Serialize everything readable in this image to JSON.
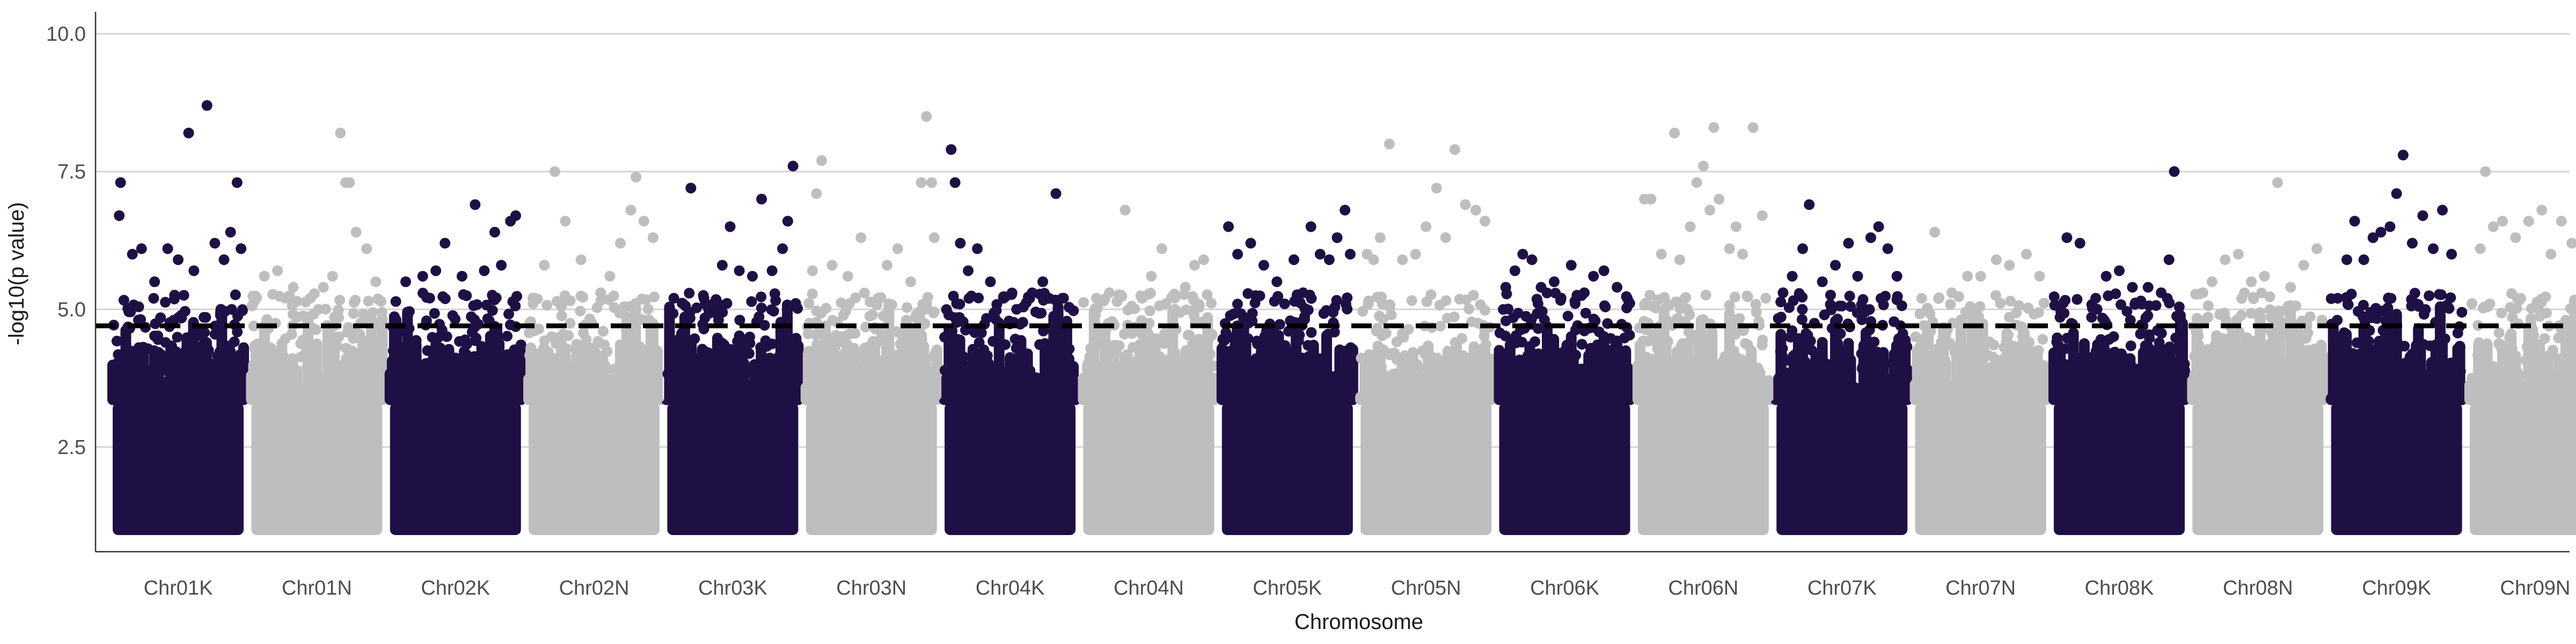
{
  "chart_data": {
    "type": "scatter",
    "title": "",
    "xlabel": "Chromosome",
    "ylabel": "-log10(p value)",
    "ylim": [
      0.6,
      10.4
    ],
    "yticks": [
      2.5,
      5.0,
      7.5,
      10.0
    ],
    "ytick_labels": [
      "2.5",
      "5.0",
      "7.5",
      "10.0"
    ],
    "grid": "horizontal",
    "threshold": 4.7,
    "colors": {
      "dark": "#1e1045",
      "light": "#bebebe",
      "threshold": "#000000"
    },
    "categories": [
      "Chr01K",
      "Chr01N",
      "Chr02K",
      "Chr02N",
      "Chr03K",
      "Chr03N",
      "Chr04K",
      "Chr04N",
      "Chr05K",
      "Chr05N",
      "Chr06K",
      "Chr06N",
      "Chr07K",
      "Chr07N",
      "Chr08K",
      "Chr08N",
      "Chr09K",
      "Chr09N"
    ],
    "series": [
      {
        "category": "Chr01K",
        "color": "dark",
        "max": 8.7,
        "top_points": [
          [
            0.05,
            6.7
          ],
          [
            0.06,
            7.3
          ],
          [
            0.15,
            6.0
          ],
          [
            0.22,
            6.1
          ],
          [
            0.32,
            5.5
          ],
          [
            0.42,
            6.1
          ],
          [
            0.5,
            5.9
          ],
          [
            0.58,
            8.2
          ],
          [
            0.62,
            5.7
          ],
          [
            0.72,
            8.7
          ],
          [
            0.78,
            6.2
          ],
          [
            0.85,
            5.9
          ],
          [
            0.9,
            6.4
          ],
          [
            0.95,
            7.3
          ],
          [
            0.98,
            6.1
          ]
        ]
      },
      {
        "category": "Chr01N",
        "color": "light",
        "max": 8.2,
        "top_points": [
          [
            0.1,
            5.6
          ],
          [
            0.2,
            5.7
          ],
          [
            0.32,
            5.4
          ],
          [
            0.45,
            5.2
          ],
          [
            0.55,
            5.4
          ],
          [
            0.62,
            5.6
          ],
          [
            0.68,
            8.2
          ],
          [
            0.72,
            7.3
          ],
          [
            0.75,
            7.3
          ],
          [
            0.8,
            6.4
          ],
          [
            0.88,
            6.1
          ],
          [
            0.95,
            5.5
          ]
        ]
      },
      {
        "category": "Chr02K",
        "color": "dark",
        "max": 7.0,
        "top_points": [
          [
            0.12,
            5.5
          ],
          [
            0.25,
            5.6
          ],
          [
            0.35,
            5.7
          ],
          [
            0.42,
            6.2
          ],
          [
            0.55,
            5.6
          ],
          [
            0.65,
            6.9
          ],
          [
            0.72,
            5.7
          ],
          [
            0.8,
            6.4
          ],
          [
            0.85,
            5.8
          ],
          [
            0.92,
            6.6
          ],
          [
            0.96,
            6.7
          ]
        ]
      },
      {
        "category": "Chr02N",
        "color": "light",
        "max": 7.5,
        "top_points": [
          [
            0.05,
            5.2
          ],
          [
            0.12,
            5.8
          ],
          [
            0.2,
            7.5
          ],
          [
            0.28,
            6.6
          ],
          [
            0.4,
            5.9
          ],
          [
            0.55,
            5.3
          ],
          [
            0.62,
            5.6
          ],
          [
            0.7,
            6.2
          ],
          [
            0.78,
            6.8
          ],
          [
            0.82,
            7.4
          ],
          [
            0.88,
            6.6
          ],
          [
            0.95,
            6.3
          ]
        ]
      },
      {
        "category": "Chr03K",
        "color": "dark",
        "max": 7.6,
        "top_points": [
          [
            0.05,
            5.2
          ],
          [
            0.12,
            5.1
          ],
          [
            0.18,
            7.2
          ],
          [
            0.28,
            5.2
          ],
          [
            0.35,
            5.1
          ],
          [
            0.42,
            5.8
          ],
          [
            0.48,
            6.5
          ],
          [
            0.55,
            5.7
          ],
          [
            0.65,
            5.6
          ],
          [
            0.72,
            7.0
          ],
          [
            0.8,
            5.7
          ],
          [
            0.88,
            6.1
          ],
          [
            0.92,
            6.6
          ],
          [
            0.96,
            7.6
          ]
        ]
      },
      {
        "category": "Chr03N",
        "color": "light",
        "max": 8.5,
        "top_points": [
          [
            0.05,
            5.7
          ],
          [
            0.08,
            7.1
          ],
          [
            0.12,
            7.7
          ],
          [
            0.2,
            5.8
          ],
          [
            0.32,
            5.6
          ],
          [
            0.42,
            6.3
          ],
          [
            0.55,
            5.2
          ],
          [
            0.62,
            5.8
          ],
          [
            0.7,
            6.1
          ],
          [
            0.8,
            5.5
          ],
          [
            0.88,
            7.3
          ],
          [
            0.92,
            8.5
          ],
          [
            0.96,
            7.3
          ],
          [
            0.98,
            6.3
          ]
        ]
      },
      {
        "category": "Chr04K",
        "color": "dark",
        "max": 7.9,
        "top_points": [
          [
            0.05,
            7.9
          ],
          [
            0.08,
            7.3
          ],
          [
            0.12,
            6.2
          ],
          [
            0.18,
            5.7
          ],
          [
            0.25,
            6.1
          ],
          [
            0.35,
            5.5
          ],
          [
            0.45,
            5.2
          ],
          [
            0.55,
            5.0
          ],
          [
            0.65,
            5.2
          ],
          [
            0.75,
            5.5
          ],
          [
            0.85,
            7.1
          ],
          [
            0.9,
            5.2
          ]
        ]
      },
      {
        "category": "Chr04N",
        "color": "light",
        "max": 6.8,
        "top_points": [
          [
            0.1,
            5.2
          ],
          [
            0.2,
            5.3
          ],
          [
            0.32,
            6.8
          ],
          [
            0.45,
            5.2
          ],
          [
            0.52,
            5.6
          ],
          [
            0.6,
            6.1
          ],
          [
            0.7,
            5.0
          ],
          [
            0.78,
            5.4
          ],
          [
            0.85,
            5.8
          ],
          [
            0.92,
            5.9
          ]
        ]
      },
      {
        "category": "Chr05K",
        "color": "dark",
        "max": 6.8,
        "top_points": [
          [
            0.05,
            6.5
          ],
          [
            0.12,
            6.0
          ],
          [
            0.22,
            6.2
          ],
          [
            0.32,
            5.8
          ],
          [
            0.42,
            5.5
          ],
          [
            0.55,
            5.9
          ],
          [
            0.62,
            5.3
          ],
          [
            0.68,
            6.5
          ],
          [
            0.75,
            6.0
          ],
          [
            0.82,
            5.9
          ],
          [
            0.88,
            6.3
          ],
          [
            0.94,
            6.8
          ],
          [
            0.98,
            6.0
          ]
        ]
      },
      {
        "category": "Chr05N",
        "color": "light",
        "max": 8.0,
        "top_points": [
          [
            0.05,
            6.0
          ],
          [
            0.1,
            5.9
          ],
          [
            0.15,
            6.3
          ],
          [
            0.22,
            8.0
          ],
          [
            0.32,
            5.9
          ],
          [
            0.42,
            6.0
          ],
          [
            0.5,
            6.5
          ],
          [
            0.58,
            7.2
          ],
          [
            0.65,
            6.3
          ],
          [
            0.72,
            7.9
          ],
          [
            0.8,
            6.9
          ],
          [
            0.88,
            6.8
          ],
          [
            0.95,
            6.6
          ]
        ]
      },
      {
        "category": "Chr06K",
        "color": "dark",
        "max": 6.0,
        "top_points": [
          [
            0.05,
            5.4
          ],
          [
            0.12,
            5.7
          ],
          [
            0.18,
            6.0
          ],
          [
            0.25,
            5.9
          ],
          [
            0.32,
            5.4
          ],
          [
            0.42,
            5.5
          ],
          [
            0.55,
            5.8
          ],
          [
            0.65,
            5.3
          ],
          [
            0.72,
            5.6
          ],
          [
            0.8,
            5.7
          ],
          [
            0.9,
            5.4
          ]
        ]
      },
      {
        "category": "Chr06N",
        "color": "light",
        "max": 8.3,
        "top_points": [
          [
            0.05,
            7.0
          ],
          [
            0.1,
            7.0
          ],
          [
            0.18,
            6.0
          ],
          [
            0.28,
            8.2
          ],
          [
            0.32,
            5.9
          ],
          [
            0.4,
            6.5
          ],
          [
            0.45,
            7.3
          ],
          [
            0.5,
            7.6
          ],
          [
            0.55,
            6.8
          ],
          [
            0.58,
            8.3
          ],
          [
            0.62,
            7.0
          ],
          [
            0.7,
            6.1
          ],
          [
            0.75,
            6.5
          ],
          [
            0.8,
            6.0
          ],
          [
            0.88,
            8.3
          ],
          [
            0.95,
            6.7
          ]
        ]
      },
      {
        "category": "Chr07K",
        "color": "dark",
        "max": 6.9,
        "top_points": [
          [
            0.05,
            5.3
          ],
          [
            0.12,
            5.6
          ],
          [
            0.2,
            6.1
          ],
          [
            0.25,
            6.9
          ],
          [
            0.35,
            5.5
          ],
          [
            0.45,
            5.8
          ],
          [
            0.55,
            6.2
          ],
          [
            0.62,
            5.6
          ],
          [
            0.72,
            6.3
          ],
          [
            0.78,
            6.5
          ],
          [
            0.85,
            6.1
          ],
          [
            0.92,
            5.6
          ]
        ]
      },
      {
        "category": "Chr07N",
        "color": "light",
        "max": 6.4,
        "top_points": [
          [
            0.05,
            5.2
          ],
          [
            0.15,
            6.4
          ],
          [
            0.28,
            5.3
          ],
          [
            0.4,
            5.6
          ],
          [
            0.5,
            5.6
          ],
          [
            0.62,
            5.9
          ],
          [
            0.72,
            5.8
          ],
          [
            0.85,
            6.0
          ],
          [
            0.95,
            5.6
          ]
        ]
      },
      {
        "category": "Chr08K",
        "color": "dark",
        "max": 7.5,
        "top_points": [
          [
            0.1,
            6.3
          ],
          [
            0.2,
            6.2
          ],
          [
            0.32,
            5.2
          ],
          [
            0.4,
            5.6
          ],
          [
            0.5,
            5.7
          ],
          [
            0.6,
            5.4
          ],
          [
            0.72,
            5.4
          ],
          [
            0.82,
            5.3
          ],
          [
            0.88,
            5.9
          ],
          [
            0.92,
            7.5
          ]
        ]
      },
      {
        "category": "Chr08N",
        "color": "light",
        "max": 7.3,
        "top_points": [
          [
            0.08,
            5.3
          ],
          [
            0.15,
            5.5
          ],
          [
            0.25,
            5.9
          ],
          [
            0.35,
            6.0
          ],
          [
            0.45,
            5.5
          ],
          [
            0.55,
            5.6
          ],
          [
            0.65,
            7.3
          ],
          [
            0.75,
            5.4
          ],
          [
            0.85,
            5.8
          ],
          [
            0.95,
            6.1
          ]
        ]
      },
      {
        "category": "Chr09K",
        "color": "dark",
        "max": 7.8,
        "top_points": [
          [
            0.05,
            5.2
          ],
          [
            0.12,
            5.9
          ],
          [
            0.18,
            6.6
          ],
          [
            0.25,
            5.9
          ],
          [
            0.32,
            6.3
          ],
          [
            0.38,
            6.4
          ],
          [
            0.45,
            6.5
          ],
          [
            0.5,
            7.1
          ],
          [
            0.55,
            7.8
          ],
          [
            0.62,
            6.2
          ],
          [
            0.7,
            6.7
          ],
          [
            0.78,
            6.1
          ],
          [
            0.85,
            6.8
          ],
          [
            0.92,
            6.0
          ]
        ]
      },
      {
        "category": "Chr09N",
        "color": "light",
        "max": 7.6,
        "top_points": [
          [
            0.08,
            6.1
          ],
          [
            0.12,
            7.5
          ],
          [
            0.18,
            6.5
          ],
          [
            0.25,
            6.6
          ],
          [
            0.35,
            6.3
          ],
          [
            0.45,
            6.6
          ],
          [
            0.55,
            6.8
          ],
          [
            0.62,
            6.0
          ],
          [
            0.7,
            6.6
          ],
          [
            0.78,
            6.2
          ],
          [
            0.85,
            6.3
          ],
          [
            0.92,
            7.3
          ],
          [
            0.96,
            6.7
          ]
        ]
      }
    ]
  }
}
